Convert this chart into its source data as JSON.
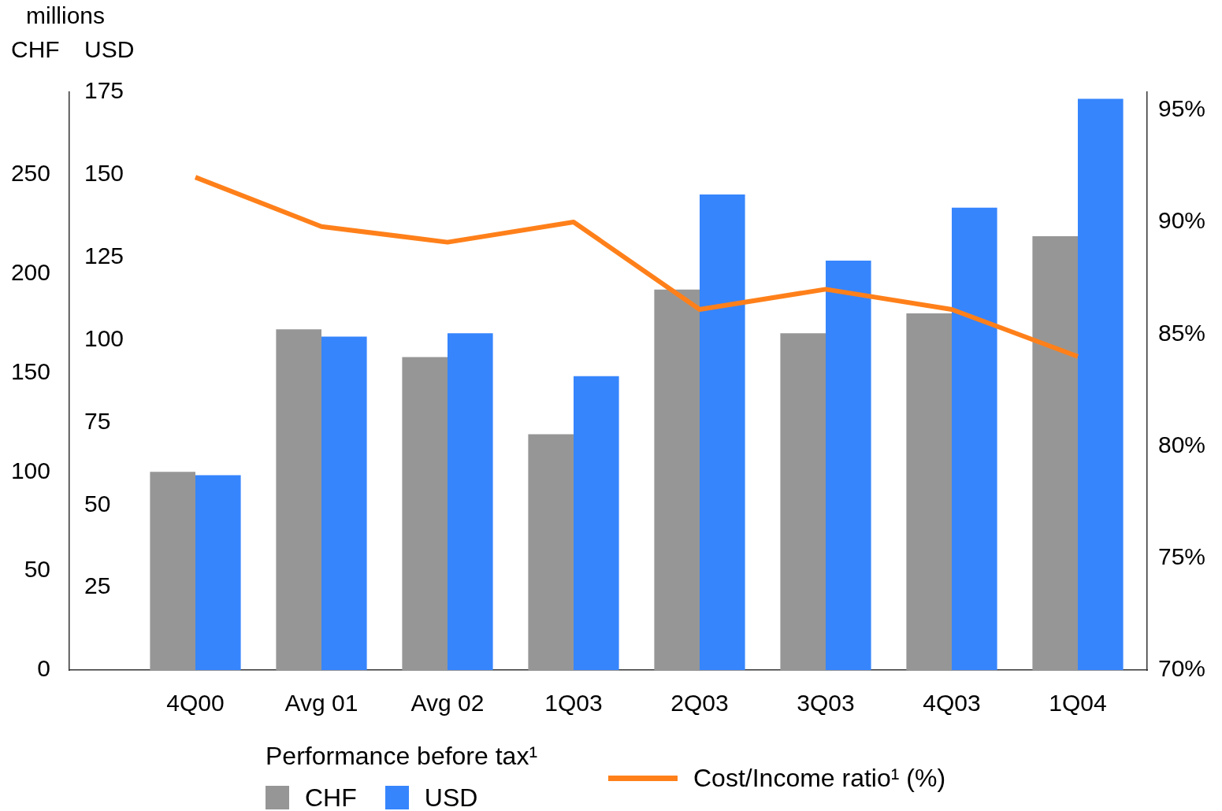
{
  "chart_data": {
    "type": "bar",
    "categories": [
      "4Q00",
      "Avg 01",
      "Avg 02",
      "1Q03",
      "2Q03",
      "3Q03",
      "4Q03",
      "1Q04"
    ],
    "series": [
      {
        "name": "CHF",
        "color": "#969696",
        "values": [
          100,
          172,
          158,
          119,
          192,
          170,
          180,
          219
        ]
      },
      {
        "name": "USD",
        "axis": "y2",
        "color": "#3685fd",
        "values": [
          59,
          101,
          102,
          89,
          144,
          124,
          140,
          173
        ]
      },
      {
        "name": "Cost/Income ratio¹ (%)",
        "type": "line",
        "axis": "y3",
        "color": "#ff801a",
        "values": [
          92.0,
          89.8,
          89.1,
          90.0,
          86.1,
          87.0,
          86.1,
          84.0
        ]
      }
    ],
    "ylabel": "CHF",
    "y2label": "USD",
    "annotations": [
      "millions"
    ],
    "ylim": [
      0,
      291.7
    ],
    "yticks": [
      0,
      50,
      100,
      150,
      200,
      250
    ],
    "y2lim": [
      0,
      175
    ],
    "y2ticks": [
      25,
      50,
      75,
      100,
      125,
      150,
      175
    ],
    "y3lim": [
      70,
      95.8
    ],
    "y3ticks": [
      {
        "value": 70,
        "label": "70%"
      },
      {
        "value": 75,
        "label": "75%"
      },
      {
        "value": 80,
        "label": "80%"
      },
      {
        "value": 85,
        "label": "85%"
      },
      {
        "value": 90,
        "label": "90%"
      },
      {
        "value": 95,
        "label": "95%"
      }
    ],
    "legend": "bottom",
    "legend_title": "Performance before tax¹"
  }
}
